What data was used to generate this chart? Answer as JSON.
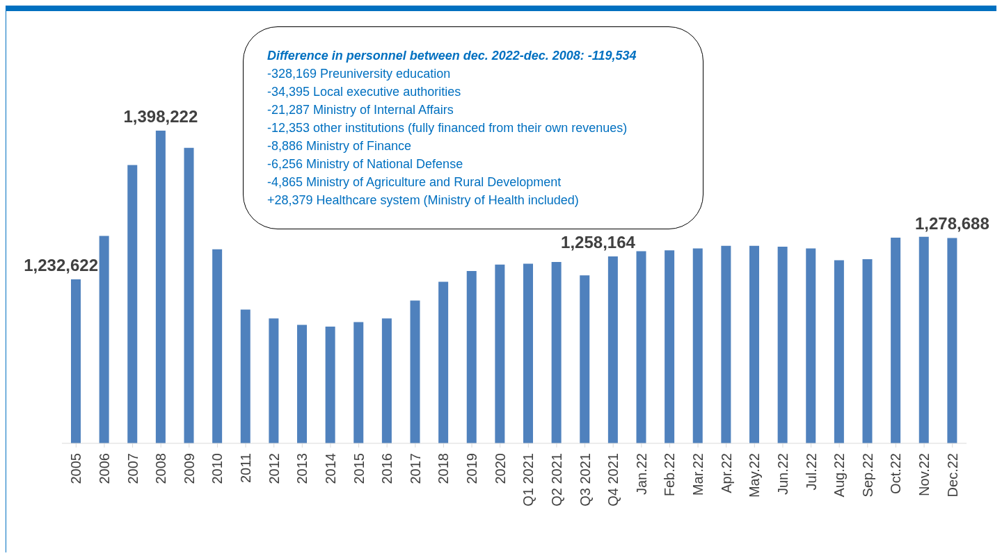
{
  "chart_data": {
    "type": "bar",
    "categories": [
      "2005",
      "2006",
      "2007",
      "2008",
      "2009",
      "2010",
      "2011",
      "2012",
      "2013",
      "2014",
      "2015",
      "2016",
      "2017",
      "2018",
      "2019",
      "2020",
      "Q1 2021",
      "Q2 2021",
      "Q3 2021",
      "Q4 2021",
      "Jan.22",
      "Feb.22",
      "Mar.22",
      "Apr.22",
      "May.22",
      "Jun.22",
      "Jul.22",
      "Aug.22",
      "Sep.22",
      "Oct.22",
      "Nov.22",
      "Dec.22"
    ],
    "values": [
      1232622,
      1281000,
      1360000,
      1398222,
      1379000,
      1266000,
      1199000,
      1189000,
      1182000,
      1180000,
      1185000,
      1189000,
      1209000,
      1230000,
      1242000,
      1249000,
      1250000,
      1252000,
      1237000,
      1258164,
      1264000,
      1265000,
      1267000,
      1270000,
      1270000,
      1269000,
      1267000,
      1254000,
      1255000,
      1279000,
      1280000,
      1278688
    ],
    "value_labels": [
      "1,232,622",
      null,
      null,
      "1,398,222",
      null,
      null,
      null,
      null,
      null,
      null,
      null,
      null,
      null,
      null,
      null,
      null,
      null,
      null,
      null,
      "1,258,164",
      null,
      null,
      null,
      null,
      null,
      null,
      null,
      null,
      null,
      null,
      null,
      "1,278,688"
    ],
    "color": "#4f81bd",
    "ylim": [
      1050000,
      1398222
    ],
    "annotations": [
      "Difference in personnel between dec. 2022-dec. 2008: -119,534",
      "-328,169 Preuniversity education",
      "-34,395 Local executive authorities",
      "-21,287 Ministry of Internal Affairs",
      "-12,353 other institutions (fully financed from their own revenues)",
      "-8,886 Ministry of Finance",
      "-6,256 Ministry of National Defense",
      "-4,865 Ministry of Agriculture and Rural Development",
      "+28,379 Healthcare system (Ministry of Health included)"
    ]
  }
}
